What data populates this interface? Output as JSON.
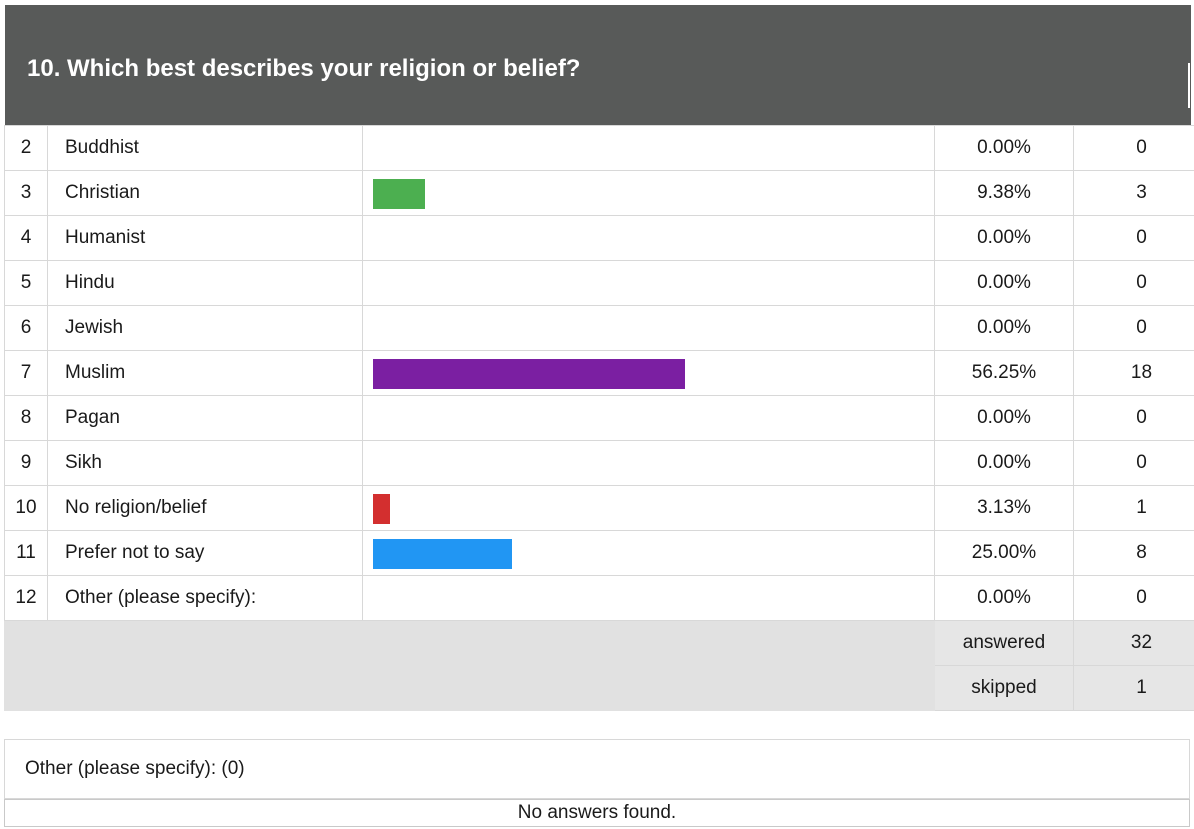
{
  "question": {
    "title": "10. Which best describes your religion or belief?"
  },
  "chart_data": {
    "type": "bar",
    "orientation": "horizontal",
    "xlim": [
      0,
      100
    ],
    "rows": [
      {
        "num": "2",
        "label": "Buddhist",
        "percent_text": "0.00%",
        "percent": 0.0,
        "count": "0",
        "color": ""
      },
      {
        "num": "3",
        "label": "Christian",
        "percent_text": "9.38%",
        "percent": 9.38,
        "count": "3",
        "color": "#4caf50"
      },
      {
        "num": "4",
        "label": "Humanist",
        "percent_text": "0.00%",
        "percent": 0.0,
        "count": "0",
        "color": ""
      },
      {
        "num": "5",
        "label": "Hindu",
        "percent_text": "0.00%",
        "percent": 0.0,
        "count": "0",
        "color": ""
      },
      {
        "num": "6",
        "label": "Jewish",
        "percent_text": "0.00%",
        "percent": 0.0,
        "count": "0",
        "color": ""
      },
      {
        "num": "7",
        "label": "Muslim",
        "percent_text": "56.25%",
        "percent": 56.25,
        "count": "18",
        "color": "#7b1fa2"
      },
      {
        "num": "8",
        "label": "Pagan",
        "percent_text": "0.00%",
        "percent": 0.0,
        "count": "0",
        "color": ""
      },
      {
        "num": "9",
        "label": "Sikh",
        "percent_text": "0.00%",
        "percent": 0.0,
        "count": "0",
        "color": ""
      },
      {
        "num": "10",
        "label": "No religion/belief",
        "percent_text": "3.13%",
        "percent": 3.13,
        "count": "1",
        "color": "#d32f2f"
      },
      {
        "num": "11",
        "label": "Prefer not to say",
        "percent_text": "25.00%",
        "percent": 25.0,
        "count": "8",
        "color": "#2196f3"
      },
      {
        "num": "12",
        "label": "Other (please specify):",
        "percent_text": "0.00%",
        "percent": 0.0,
        "count": "0",
        "color": ""
      }
    ]
  },
  "summary": {
    "answered_label": "answered",
    "answered_value": "32",
    "skipped_label": "skipped",
    "skipped_value": "1"
  },
  "other_section": {
    "heading": "Other (please specify): (0)",
    "empty_message": "No answers found."
  }
}
